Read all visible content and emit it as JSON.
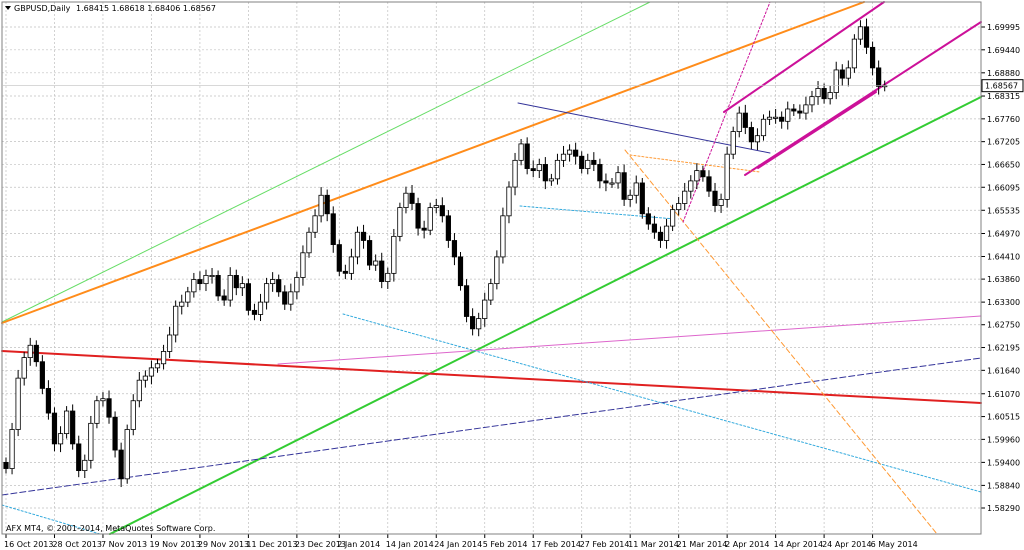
{
  "window": {
    "symbol_label": "GBPUSD,Daily",
    "ohlc_label": "1.68415 1.68618 1.68406 1.68567",
    "copyright": "AFX MT4, © 2001-2014, MetaQuotes Software Corp."
  },
  "colors": {
    "background": "#ffffff",
    "grid": "#c0c0c0",
    "candle": "#000000",
    "orange_channel": "#ff8c1a",
    "green_channel": "#33cc33",
    "light_green": "#66dd66",
    "red_line": "#e02020",
    "magenta": "#cc1199",
    "pink": "#dd66cc",
    "navy": "#333399",
    "cyan": "#33aadd",
    "orange_dash": "#ff9933"
  },
  "chart_data": {
    "type": "candlestick",
    "symbol": "GBPUSD",
    "timeframe": "Daily",
    "current_price": 1.68567,
    "y_ticks": [
      1.69995,
      1.6944,
      1.6888,
      1.68315,
      1.6776,
      1.67205,
      1.6665,
      1.66095,
      1.65535,
      1.6497,
      1.6441,
      1.6386,
      1.633,
      1.6275,
      1.62195,
      1.6164,
      1.6107,
      1.60515,
      1.5996,
      1.594,
      1.5884,
      1.5829
    ],
    "x_ticks": [
      {
        "label": "16 Oct 2013",
        "day": 0
      },
      {
        "label": "28 Oct 2013",
        "day": 8
      },
      {
        "label": "7 Nov 2013",
        "day": 16
      },
      {
        "label": "19 Nov 2013",
        "day": 24
      },
      {
        "label": "29 Nov 2013",
        "day": 32
      },
      {
        "label": "11 Dec 2013",
        "day": 40
      },
      {
        "label": "23 Dec 2013",
        "day": 48
      },
      {
        "label": "2 Jan 2014",
        "day": 55
      },
      {
        "label": "14 Jan 2014",
        "day": 63
      },
      {
        "label": "24 Jan 2014",
        "day": 71
      },
      {
        "label": "5 Feb 2014",
        "day": 79
      },
      {
        "label": "17 Feb 2014",
        "day": 87
      },
      {
        "label": "27 Feb 2014",
        "day": 95
      },
      {
        "label": "11 Mar 2014",
        "day": 103
      },
      {
        "label": "21 Mar 2014",
        "day": 111
      },
      {
        "label": "2 Apr 2014",
        "day": 119
      },
      {
        "label": "14 Apr 2014",
        "day": 127
      },
      {
        "label": "24 Apr 2014",
        "day": 135
      },
      {
        "label": "6 May 2014",
        "day": 143
      }
    ],
    "closes": [
      1.5925,
      1.602,
      1.6145,
      1.6195,
      1.6225,
      1.6185,
      1.612,
      1.606,
      1.5985,
      1.601,
      1.6065,
      1.5985,
      1.592,
      1.5945,
      1.6035,
      1.609,
      1.6095,
      1.605,
      1.597,
      1.59,
      1.602,
      1.609,
      1.614,
      1.615,
      1.617,
      1.618,
      1.621,
      1.625,
      1.632,
      1.633,
      1.6355,
      1.6385,
      1.6375,
      1.6395,
      1.6395,
      1.6345,
      1.6335,
      1.6395,
      1.6365,
      1.6375,
      1.631,
      1.63,
      1.633,
      1.6375,
      1.6385,
      1.6355,
      1.6325,
      1.6355,
      1.639,
      1.645,
      1.65,
      1.654,
      1.659,
      1.6545,
      1.647,
      1.6405,
      1.64,
      1.644,
      1.65,
      1.648,
      1.642,
      1.643,
      1.638,
      1.64,
      1.649,
      1.656,
      1.6595,
      1.657,
      1.651,
      1.6505,
      1.656,
      1.6565,
      1.654,
      1.648,
      1.644,
      1.637,
      1.6295,
      1.6265,
      1.629,
      1.6335,
      1.6375,
      1.644,
      1.654,
      1.661,
      1.6675,
      1.6715,
      1.6655,
      1.665,
      1.6665,
      1.6625,
      1.663,
      1.6675,
      1.669,
      1.67,
      1.6685,
      1.6655,
      1.6675,
      1.6665,
      1.6625,
      1.662,
      1.662,
      1.6645,
      1.658,
      1.659,
      1.662,
      1.6545,
      1.652,
      1.65,
      1.648,
      1.6515,
      1.6555,
      1.657,
      1.66,
      1.6625,
      1.665,
      1.6635,
      1.66,
      1.6565,
      1.658,
      1.669,
      1.6745,
      1.679,
      1.6755,
      1.672,
      1.6735,
      1.6775,
      1.678,
      1.678,
      1.677,
      1.68,
      1.6795,
      1.679,
      1.681,
      1.683,
      1.685,
      1.6825,
      1.684,
      1.6895,
      1.6875,
      1.69,
      1.697,
      1.7,
      1.695,
      1.69,
      1.6855,
      1.6857
    ]
  }
}
